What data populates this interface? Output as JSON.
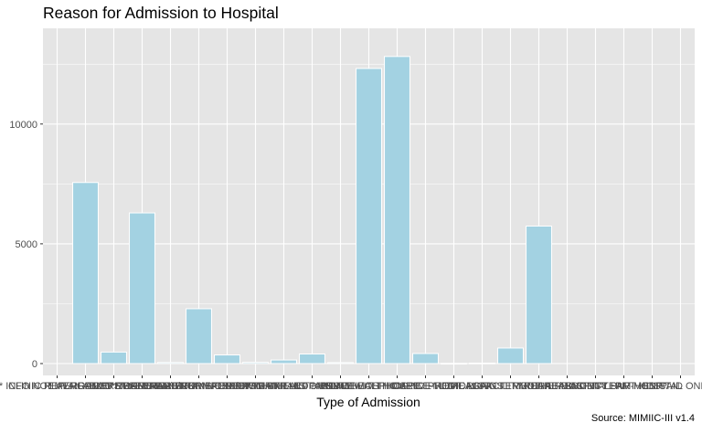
{
  "chart_data": {
    "type": "bar",
    "title": "Reason for Admission to Hospital",
    "xlabel": "Type of Admission",
    "ylabel": "",
    "caption": "Source: MIMIIC-III v1.4",
    "categories": [
      "** INFO NOT AVAILABLE **",
      "CLINIC REFERRAL/PREMATURE",
      "EMERGENCY ROOM ADMIT",
      "HMO REFERRAL/SICK",
      "PHYS REFERRAL/NORMAL DELI",
      "TRANSFER FROM HOSP/EXTRAM",
      "TRANSFER FROM OTHER HEALT",
      "TRANSFER FROM SKILLED NUR",
      "TRSF WITHIN THIS FACILITY",
      "DISCH-TRAN TO PSYCH HOSP",
      "HOME",
      "HOME HEALTH CARE",
      "HOME WITH HOME IV PROVIDR",
      "HOSPICE-HOME",
      "HOSPICE-MEDICAL FACILITY",
      "ICF",
      "LEFT AGAINST MEDICAL ADVI",
      "LONG TERM CARE HOSPITAL",
      "OTHER FACILITY",
      "REHAB/DISTINCT PART HOSP",
      "SHORT TERM HOSPITAL",
      "SNF",
      "SNF-MEDICAID ONLY CERTIF"
    ],
    "values": [
      0,
      7560,
      480,
      6290,
      45,
      2290,
      360,
      50,
      150,
      400,
      40,
      12320,
      12820,
      420,
      10,
      20,
      650,
      5740,
      0,
      0,
      0,
      0,
      0
    ],
    "ylim": [
      0,
      13500
    ],
    "yticks": [
      0,
      5000,
      10000
    ],
    "colors": {
      "panel": "#e5e5e5",
      "grid": "#ffffff",
      "bar_fill": "#a3d2e2",
      "bar_stroke": "#ffffff"
    }
  }
}
